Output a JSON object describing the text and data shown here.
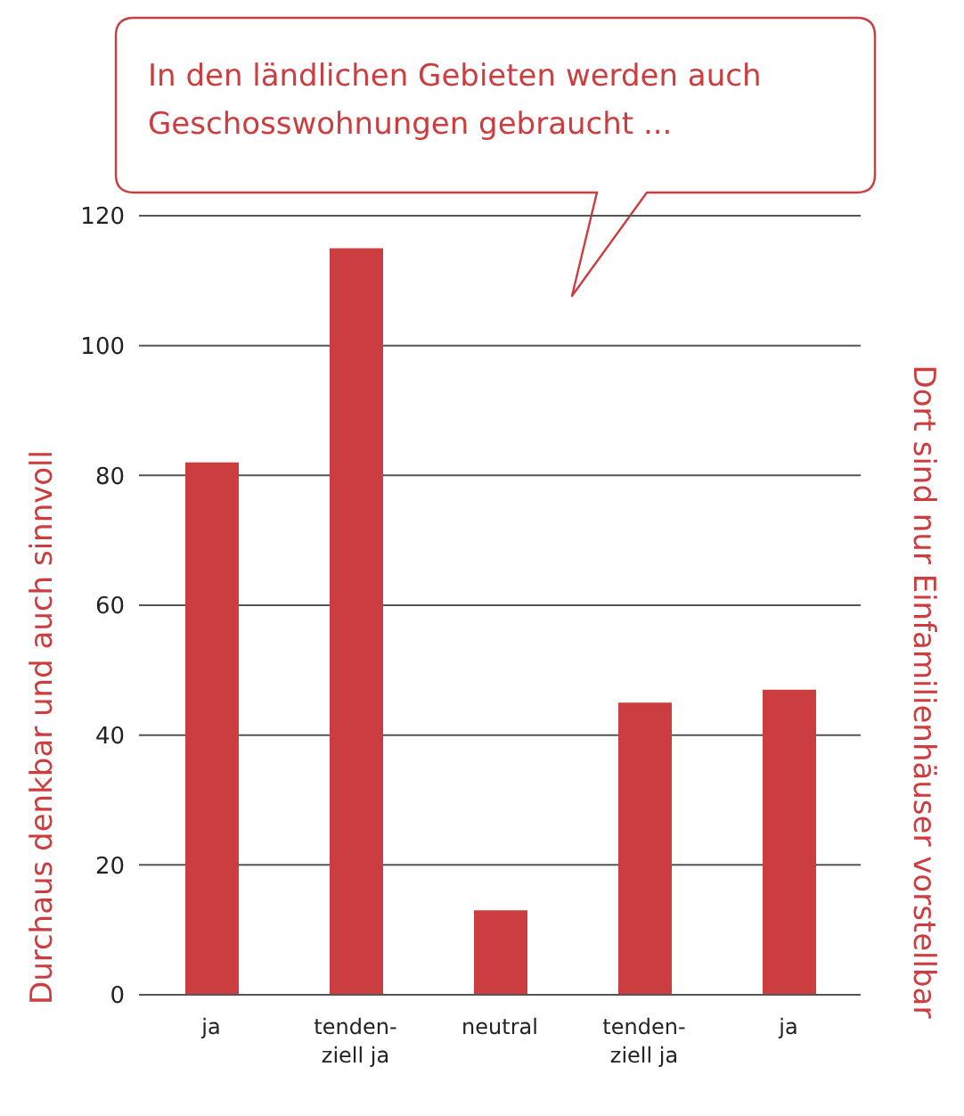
{
  "chart_data": {
    "type": "bar",
    "title": "In den ländlichen Gebieten werden auch\nGeschosswohnungen gebraucht ...",
    "ylabel": "Durchaus denkbar und auch sinnvoll",
    "y2label": "Dort sind nur Einfamilienhäuser vorstellbar",
    "categories": [
      "ja",
      "tenden-\nziell ja",
      "neutral",
      "tenden-\nziell ja",
      "ja"
    ],
    "values": [
      82,
      115,
      13,
      45,
      47
    ],
    "color": "#cc3d3f",
    "ylim": [
      0,
      120
    ],
    "yticks": [
      0,
      20,
      40,
      60,
      80,
      100,
      120
    ],
    "grid": "y"
  }
}
